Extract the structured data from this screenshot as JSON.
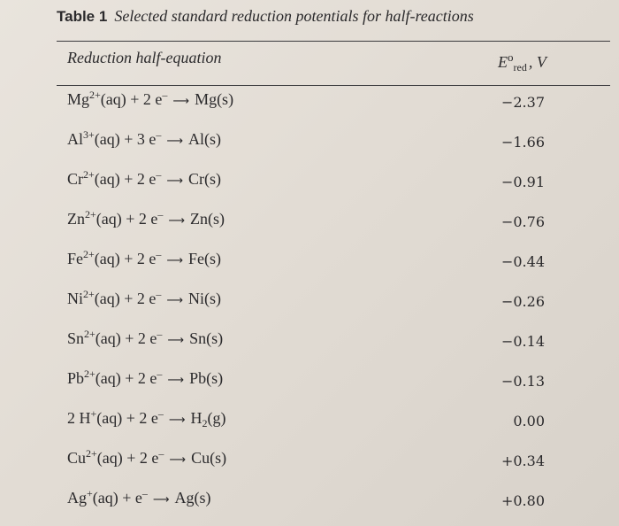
{
  "table": {
    "label": "Table 1",
    "title": "Selected standard reduction potentials for half-reactions",
    "col_left": "Reduction half-equation",
    "col_right": {
      "main": "E",
      "sup": "o",
      "sub": "red",
      "unit": ", V"
    },
    "rows": [
      {
        "lhs_species": "Mg",
        "lhs_charge": "2+",
        "lhs_state": "(aq) + 2 e",
        "electron_sup": "–",
        "rhs_species": "Mg(s)",
        "rhs_sub": "",
        "rhs_tail": "",
        "value": "−2.37"
      },
      {
        "lhs_species": "Al",
        "lhs_charge": "3+",
        "lhs_state": "(aq) + 3 e",
        "electron_sup": "–",
        "rhs_species": "Al(s)",
        "rhs_sub": "",
        "rhs_tail": "",
        "value": "−1.66"
      },
      {
        "lhs_species": "Cr",
        "lhs_charge": "2+",
        "lhs_state": "(aq) + 2 e",
        "electron_sup": "–",
        "rhs_species": "Cr(s)",
        "rhs_sub": "",
        "rhs_tail": "",
        "value": "−0.91"
      },
      {
        "lhs_species": "Zn",
        "lhs_charge": "2+",
        "lhs_state": "(aq) + 2 e",
        "electron_sup": "–",
        "rhs_species": "Zn(s)",
        "rhs_sub": "",
        "rhs_tail": "",
        "value": "−0.76"
      },
      {
        "lhs_species": "Fe",
        "lhs_charge": "2+",
        "lhs_state": "(aq) + 2 e",
        "electron_sup": "–",
        "rhs_species": "Fe(s)",
        "rhs_sub": "",
        "rhs_tail": "",
        "value": "−0.44"
      },
      {
        "lhs_species": "Ni",
        "lhs_charge": "2+",
        "lhs_state": "(aq) + 2 e",
        "electron_sup": "–",
        "rhs_species": "Ni(s)",
        "rhs_sub": "",
        "rhs_tail": "",
        "value": "−0.26"
      },
      {
        "lhs_species": "Sn",
        "lhs_charge": "2+",
        "lhs_state": "(aq) + 2 e",
        "electron_sup": "–",
        "rhs_species": "Sn(s)",
        "rhs_sub": "",
        "rhs_tail": "",
        "value": "−0.14"
      },
      {
        "lhs_species": "Pb",
        "lhs_charge": "2+",
        "lhs_state": "(aq) + 2 e",
        "electron_sup": "–",
        "rhs_species": "Pb(s)",
        "rhs_sub": "",
        "rhs_tail": "",
        "value": "−0.13"
      },
      {
        "lhs_species": "2 H",
        "lhs_charge": "+",
        "lhs_state": "(aq) + 2 e",
        "electron_sup": "–",
        "rhs_species": "H",
        "rhs_sub": "2",
        "rhs_tail": "(g)",
        "value": "0.00"
      },
      {
        "lhs_species": "Cu",
        "lhs_charge": "2+",
        "lhs_state": "(aq) + 2 e",
        "electron_sup": "–",
        "rhs_species": "Cu(s)",
        "rhs_sub": "",
        "rhs_tail": "",
        "value": "+0.34"
      },
      {
        "lhs_species": "Ag",
        "lhs_charge": "+",
        "lhs_state": "(aq) + e",
        "electron_sup": "–",
        "rhs_species": "Ag(s)",
        "rhs_sub": "",
        "rhs_tail": "",
        "value": "+0.80"
      }
    ]
  }
}
